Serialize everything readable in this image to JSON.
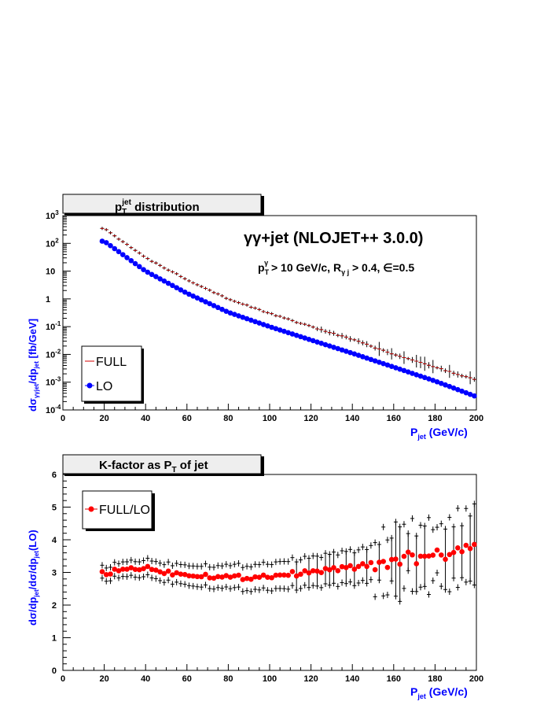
{
  "colors": {
    "full": "#d40000",
    "lo": "#0000ff",
    "axis_label": "#0000ff",
    "text": "#000000",
    "title_box": "#eeeeee"
  },
  "chart_data": [
    {
      "type": "scatter",
      "panel": "top",
      "title_main": "p",
      "title_sub": "T",
      "title_sup": "jet",
      "title_rest": " distribution",
      "annotation_line1": "γγ+jet (NLOJET++ 3.0.0)",
      "annotation_line2": {
        "p": "p",
        "p_sub": "T",
        "p_sup": "γ",
        "mid": " > 10 GeV/c, R",
        "r_sub": "γ j",
        "rest": " > 0.4, ∈=0.5"
      },
      "ylabel": {
        "a": "dσ",
        "a_sub": "γγjet",
        "b": "/dp",
        "b_sub": "jet",
        "c": " [fb/GeV]"
      },
      "xlabel": {
        "main": "P",
        "sub": "jet",
        "rest": " (GeV/c)"
      },
      "xlim": [
        0,
        200
      ],
      "ylim": [
        0.0001,
        1000
      ],
      "y_log": true,
      "x_ticks": [
        "0",
        "20",
        "40",
        "60",
        "80",
        "100",
        "120",
        "140",
        "160",
        "180",
        "200"
      ],
      "y_ticks": [
        {
          "value": 1000,
          "base": "10",
          "exp": "3"
        },
        {
          "value": 100,
          "base": "10",
          "exp": "2"
        },
        {
          "value": 10,
          "base": "10",
          "exp": ""
        },
        {
          "value": 1,
          "base": "1",
          "exp": ""
        },
        {
          "value": 0.1,
          "base": "10",
          "exp": "-1"
        },
        {
          "value": 0.01,
          "base": "10",
          "exp": "-2"
        },
        {
          "value": 0.001,
          "base": "10",
          "exp": "-3"
        },
        {
          "value": 0.0001,
          "base": "10",
          "exp": "-4"
        }
      ],
      "legend_location": "bottom-left",
      "legend": [
        {
          "label": "FULL",
          "marker": "line"
        },
        {
          "label": "LO",
          "marker": "circle"
        }
      ],
      "series": [
        {
          "name": "FULL",
          "x": [
            20,
            40,
            60,
            80,
            100,
            120,
            140,
            160,
            180,
            200
          ],
          "y": [
            350,
            30,
            5,
            1,
            0.3,
            0.1,
            0.035,
            0.01,
            0.0035,
            0.0012
          ]
        },
        {
          "name": "LO",
          "x": [
            20,
            40,
            60,
            80,
            100,
            120,
            140,
            160,
            180,
            200
          ],
          "y": [
            120,
            10,
            1.6,
            0.33,
            0.1,
            0.033,
            0.011,
            0.0035,
            0.0011,
            0.0003
          ]
        }
      ]
    },
    {
      "type": "scatter",
      "panel": "bottom",
      "title_main": "K-factor as P",
      "title_sub": "T",
      "title_rest": " of jet",
      "ylabel": {
        "a": "dσ/dp",
        "a_sub": "jet",
        "b": "/dσ/dp",
        "b_sub": "jet",
        "c": "(LO)"
      },
      "xlabel": {
        "main": "P",
        "sub": "jet",
        "rest": " (GeV/c)"
      },
      "xlim": [
        0,
        200
      ],
      "ylim": [
        0,
        6
      ],
      "x_ticks": [
        "0",
        "20",
        "40",
        "60",
        "80",
        "100",
        "120",
        "140",
        "160",
        "180",
        "200"
      ],
      "y_ticks": [
        "0",
        "1",
        "2",
        "3",
        "4",
        "5",
        "6"
      ],
      "legend_location": "top-left",
      "legend": [
        {
          "label": "FULL/LO",
          "marker": "circle"
        }
      ],
      "series": [
        {
          "name": "FULL/LO",
          "x": [
            20,
            30,
            40,
            50,
            60,
            70,
            80,
            90,
            100,
            110,
            120,
            130,
            140,
            150,
            160,
            170,
            180,
            190,
            200
          ],
          "y": [
            2.95,
            3.1,
            3.15,
            3.0,
            2.95,
            2.9,
            2.85,
            2.85,
            2.9,
            2.95,
            3.0,
            3.1,
            3.15,
            3.25,
            3.35,
            3.4,
            3.5,
            3.6,
            3.8
          ]
        }
      ]
    }
  ]
}
